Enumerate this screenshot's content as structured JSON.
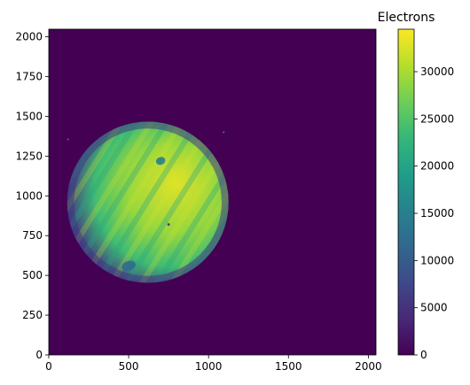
{
  "chart_data": {
    "type": "heatmap",
    "description_free": true,
    "xlim": [
      0,
      2048
    ],
    "ylim": [
      0,
      2048
    ],
    "x_ticks": [
      0,
      500,
      1000,
      1500,
      2000
    ],
    "y_ticks": [
      0,
      250,
      500,
      750,
      1000,
      1250,
      1500,
      1750,
      2000
    ],
    "colorbar": {
      "title": "Electrons",
      "range": [
        0,
        34500
      ],
      "ticks": [
        0,
        5000,
        10000,
        15000,
        20000,
        25000,
        30000
      ],
      "colormap": "viridis"
    },
    "planet_disk": {
      "center_x": 620,
      "center_y": 960,
      "radius": 505,
      "limb_value": 6000,
      "peak_value": 33000
    },
    "features": [
      {
        "x": 500,
        "y": 560,
        "rx": 45,
        "ry": 30,
        "value": 12000
      },
      {
        "x": 700,
        "y": 1220,
        "rx": 30,
        "ry": 24,
        "value": 15000
      },
      {
        "x": 750,
        "y": 820,
        "rx": 8,
        "ry": 8,
        "value": 4000
      }
    ],
    "moons": [
      {
        "x": 120,
        "y": 1355,
        "value": 20000
      },
      {
        "x": 1095,
        "y": 1400,
        "value": 20000
      }
    ],
    "background_value": 0
  },
  "colors": {
    "viridis_stops": [
      "#440154",
      "#482878",
      "#3e4989",
      "#31688e",
      "#26828e",
      "#1f9e89",
      "#35b779",
      "#6ece58",
      "#b5de2b",
      "#fde725"
    ]
  }
}
